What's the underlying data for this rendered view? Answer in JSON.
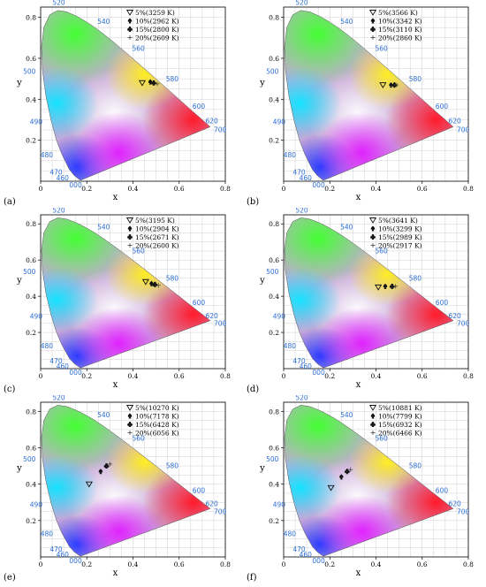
{
  "colors": {
    "wavelength_label": "#2e6fd6",
    "grid": "#d0d0d0",
    "axis": "#000000",
    "marker": "#111111"
  },
  "chart_data": [
    {
      "id": "a",
      "type": "scatter",
      "panel_label": "(a)",
      "xlabel": "x",
      "ylabel": "y",
      "xlim": [
        0,
        0.8
      ],
      "ylim": [
        0,
        0.85
      ],
      "xticks": [
        "0",
        "0.2",
        "0.4",
        "0.6",
        "0.8"
      ],
      "yticks": [
        "0.2",
        "0.4",
        "0.6",
        "0.8"
      ],
      "wavelength_labels": [
        "000",
        "460",
        "470",
        "480",
        "490",
        "500",
        "520",
        "540",
        "560",
        "580",
        "600",
        "620",
        "700"
      ],
      "series": [
        {
          "label": "5%(3259 K)",
          "marker": "triangle-down",
          "x": 0.44,
          "y": 0.48
        },
        {
          "label": "10%(2962 K)",
          "marker": "spade",
          "x": 0.475,
          "y": 0.485
        },
        {
          "label": "15%(2800 K)",
          "marker": "club",
          "x": 0.49,
          "y": 0.48
        },
        {
          "label": "20%(2609 K)",
          "marker": "plus",
          "x": 0.505,
          "y": 0.475
        }
      ]
    },
    {
      "id": "b",
      "type": "scatter",
      "panel_label": "(b)",
      "xlabel": "x",
      "ylabel": "y",
      "xlim": [
        0,
        0.8
      ],
      "ylim": [
        0,
        0.85
      ],
      "xticks": [
        "0",
        "0.2",
        "0.4",
        "0.6",
        "0.8"
      ],
      "yticks": [
        "0.2",
        "0.4",
        "0.6",
        "0.8"
      ],
      "wavelength_labels": [
        "000",
        "460",
        "470",
        "480",
        "490",
        "500",
        "520",
        "540",
        "560",
        "580",
        "600",
        "620",
        "700"
      ],
      "series": [
        {
          "label": "5%(3566 K)",
          "marker": "triangle-down",
          "x": 0.43,
          "y": 0.47
        },
        {
          "label": "10%(3342 K)",
          "marker": "spade",
          "x": 0.465,
          "y": 0.47
        },
        {
          "label": "15%(3110 K)",
          "marker": "club",
          "x": 0.48,
          "y": 0.47
        },
        {
          "label": "20%(2860 K)",
          "marker": "plus",
          "x": 0.49,
          "y": 0.47
        }
      ]
    },
    {
      "id": "c",
      "type": "scatter",
      "panel_label": "(c)",
      "xlabel": "x",
      "ylabel": "y",
      "xlim": [
        0,
        0.8
      ],
      "ylim": [
        0,
        0.85
      ],
      "xticks": [
        "0",
        "0.2",
        "0.4",
        "0.6",
        "0.8"
      ],
      "yticks": [
        "0.2",
        "0.4",
        "0.6",
        "0.8"
      ],
      "wavelength_labels": [
        "000",
        "460",
        "470",
        "480",
        "490",
        "500",
        "520",
        "540",
        "560",
        "580",
        "600",
        "620",
        "700"
      ],
      "series": [
        {
          "label": "5%(3195 K)",
          "marker": "triangle-down",
          "x": 0.455,
          "y": 0.48
        },
        {
          "label": "10%(2904 K)",
          "marker": "spade",
          "x": 0.48,
          "y": 0.47
        },
        {
          "label": "15%(2671 K)",
          "marker": "club",
          "x": 0.495,
          "y": 0.465
        },
        {
          "label": "20%(2600 K)",
          "marker": "plus",
          "x": 0.51,
          "y": 0.46
        }
      ]
    },
    {
      "id": "d",
      "type": "scatter",
      "panel_label": "(d)",
      "xlabel": "x",
      "ylabel": "y",
      "xlim": [
        0,
        0.8
      ],
      "ylim": [
        0,
        0.85
      ],
      "xticks": [
        "0",
        "0.2",
        "0.4",
        "0.6",
        "0.8"
      ],
      "yticks": [
        "0.2",
        "0.4",
        "0.6",
        "0.8"
      ],
      "wavelength_labels": [
        "000",
        "460",
        "470",
        "480",
        "490",
        "500",
        "520",
        "540",
        "560",
        "580",
        "600",
        "620",
        "700"
      ],
      "series": [
        {
          "label": "5%(3641 K)",
          "marker": "triangle-down",
          "x": 0.41,
          "y": 0.45
        },
        {
          "label": "10%(3299 K)",
          "marker": "spade",
          "x": 0.44,
          "y": 0.455
        },
        {
          "label": "15%(2989 K)",
          "marker": "club",
          "x": 0.47,
          "y": 0.455
        },
        {
          "label": "20%(2917 K)",
          "marker": "plus",
          "x": 0.485,
          "y": 0.455
        }
      ]
    },
    {
      "id": "e",
      "type": "scatter",
      "panel_label": "(e)",
      "xlabel": "x",
      "ylabel": "y",
      "xlim": [
        0,
        0.8
      ],
      "ylim": [
        0,
        0.85
      ],
      "xticks": [
        "0",
        "0.2",
        "0.4",
        "0.6",
        "0.8"
      ],
      "yticks": [
        "0.2",
        "0.4",
        "0.6",
        "0.8"
      ],
      "wavelength_labels": [
        "000",
        "460",
        "470",
        "480",
        "490",
        "500",
        "520",
        "540",
        "560",
        "580",
        "600",
        "620",
        "700"
      ],
      "series": [
        {
          "label": "5%(10270 K)",
          "marker": "triangle-down",
          "x": 0.21,
          "y": 0.4
        },
        {
          "label": "10%(7178 K)",
          "marker": "spade",
          "x": 0.26,
          "y": 0.47
        },
        {
          "label": "15%(6428 K)",
          "marker": "club",
          "x": 0.285,
          "y": 0.5
        },
        {
          "label": "20%(6056 K)",
          "marker": "plus",
          "x": 0.3,
          "y": 0.51
        }
      ]
    },
    {
      "id": "f",
      "type": "scatter",
      "panel_label": "(f)",
      "xlabel": "x",
      "ylabel": "y",
      "xlim": [
        0,
        0.8
      ],
      "ylim": [
        0,
        0.85
      ],
      "xticks": [
        "0",
        "0.2",
        "0.4",
        "0.6",
        "0.8"
      ],
      "yticks": [
        "0.2",
        "0.4",
        "0.6",
        "0.8"
      ],
      "wavelength_labels": [
        "000",
        "460",
        "470",
        "480",
        "490",
        "500",
        "520",
        "540",
        "560",
        "580",
        "600",
        "620",
        "700"
      ],
      "series": [
        {
          "label": "5%(10881 K)",
          "marker": "triangle-down",
          "x": 0.205,
          "y": 0.38
        },
        {
          "label": "10%(7799 K)",
          "marker": "spade",
          "x": 0.25,
          "y": 0.44
        },
        {
          "label": "15%(6932 K)",
          "marker": "club",
          "x": 0.275,
          "y": 0.47
        },
        {
          "label": "20%(6466 K)",
          "marker": "plus",
          "x": 0.29,
          "y": 0.48
        }
      ]
    }
  ]
}
